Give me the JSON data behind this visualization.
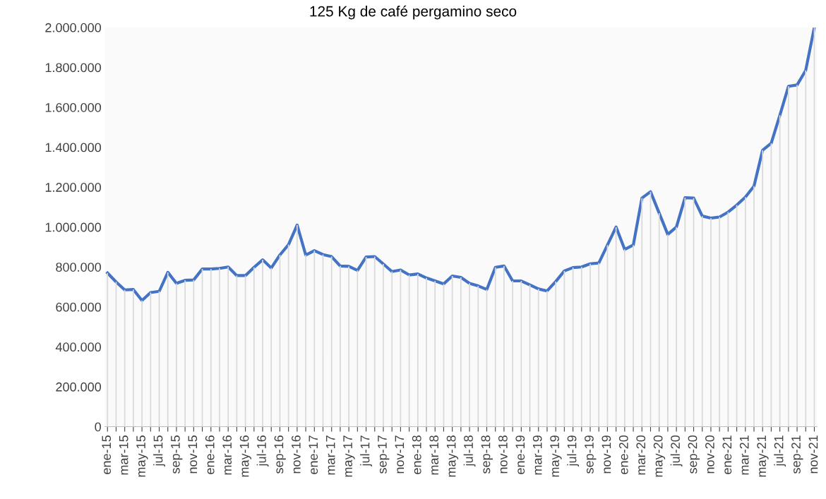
{
  "chart_data": {
    "type": "line",
    "title": "125 Kg de café pergamino seco",
    "categories": [
      "ene-15",
      null,
      "mar-15",
      null,
      "may-15",
      null,
      "jul-15",
      null,
      "sep-15",
      null,
      "nov-15",
      null,
      "ene-16",
      null,
      "mar-16",
      null,
      "may-16",
      null,
      "jul-16",
      null,
      "sep-16",
      null,
      "nov-16",
      null,
      "ene-17",
      null,
      "mar-17",
      null,
      "may-17",
      null,
      "jul-17",
      null,
      "sep-17",
      null,
      "nov-17",
      null,
      "ene-18",
      null,
      "mar-18",
      null,
      "may-18",
      null,
      "jul-18",
      null,
      "sep-18",
      null,
      "nov-18",
      null,
      "ene-19",
      null,
      "mar-19",
      null,
      "may-19",
      null,
      "jul-19",
      null,
      "sep-19",
      null,
      "nov-19",
      null,
      "ene-20",
      null,
      "mar-20",
      null,
      "may-20",
      null,
      "jul-20",
      null,
      "sep-20",
      null,
      "nov-20",
      null,
      "ene-21",
      null,
      "mar-21",
      null,
      "may-21",
      null,
      "jul-21",
      null,
      "sep-21",
      null,
      "nov-21"
    ],
    "series": [
      {
        "type": "bar",
        "color": "#d9d9d9",
        "values": [
          770000,
          725000,
          685000,
          687000,
          632000,
          672000,
          678000,
          773000,
          718000,
          733000,
          735000,
          790000,
          790000,
          793000,
          800000,
          757000,
          757000,
          798000,
          836000,
          795000,
          860000,
          912000,
          1010000,
          860000,
          882000,
          862000,
          852000,
          805000,
          803000,
          783000,
          850000,
          852000,
          815000,
          777000,
          785000,
          760000,
          765000,
          745000,
          730000,
          715000,
          755000,
          748000,
          718000,
          705000,
          687000,
          798000,
          805000,
          730000,
          730000,
          710000,
          690000,
          680000,
          727000,
          780000,
          797000,
          800000,
          816000,
          820000,
          910000,
          1000000,
          888000,
          910000,
          1145000,
          1177000,
          1070000,
          963000,
          1000000,
          1147000,
          1145000,
          1055000,
          1045000,
          1050000,
          1075000,
          1110000,
          1150000,
          1205000,
          1385000,
          1420000,
          1560000,
          1705000,
          1712000,
          1785000,
          2000000
        ]
      },
      {
        "color": "#4472c4",
        "values": [
          770000,
          725000,
          685000,
          687000,
          632000,
          672000,
          678000,
          773000,
          718000,
          733000,
          735000,
          790000,
          790000,
          793000,
          800000,
          757000,
          757000,
          798000,
          836000,
          795000,
          860000,
          912000,
          1010000,
          860000,
          882000,
          862000,
          852000,
          805000,
          803000,
          783000,
          850000,
          852000,
          815000,
          777000,
          785000,
          760000,
          765000,
          745000,
          730000,
          715000,
          755000,
          748000,
          718000,
          705000,
          687000,
          798000,
          805000,
          730000,
          730000,
          710000,
          690000,
          680000,
          727000,
          780000,
          797000,
          800000,
          816000,
          820000,
          910000,
          1000000,
          888000,
          910000,
          1145000,
          1177000,
          1070000,
          963000,
          1000000,
          1147000,
          1145000,
          1055000,
          1045000,
          1050000,
          1075000,
          1110000,
          1150000,
          1205000,
          1385000,
          1420000,
          1560000,
          1705000,
          1712000,
          1785000,
          2000000
        ]
      }
    ],
    "ylim": [
      0,
      2000000
    ],
    "yticks": [
      {
        "value": 0,
        "label": "0"
      },
      {
        "value": 200000,
        "label": "200.000"
      },
      {
        "value": 400000,
        "label": "400.000"
      },
      {
        "value": 600000,
        "label": "600.000"
      },
      {
        "value": 800000,
        "label": "800.000"
      },
      {
        "value": 1000000,
        "label": "1.000.000"
      },
      {
        "value": 1200000,
        "label": "1.200.000"
      },
      {
        "value": 1400000,
        "label": "1.400.000"
      },
      {
        "value": 1600000,
        "label": "1.600.000"
      },
      {
        "value": 1800000,
        "label": "1.800.000"
      },
      {
        "value": 2000000,
        "label": "2.000.000"
      }
    ],
    "marker": "none",
    "line_style": "solid"
  }
}
